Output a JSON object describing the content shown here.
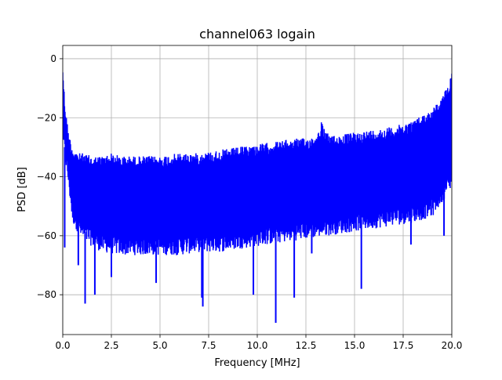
{
  "chart_data": {
    "type": "line",
    "title": "channel063 logain",
    "xlabel": "Frequency [MHz]",
    "ylabel": "PSD [dB]",
    "xlim": [
      0,
      20
    ],
    "ylim": [
      -93.5,
      4.5
    ],
    "x_ticks": [
      0,
      2.5,
      5,
      7.5,
      10,
      12.5,
      15,
      17.5,
      20
    ],
    "x_tick_labels": [
      "0.0",
      "2.5",
      "5.0",
      "7.5",
      "10.0",
      "12.5",
      "15.0",
      "17.5",
      "20.0"
    ],
    "y_ticks": [
      0,
      -20,
      -40,
      -60,
      -80
    ],
    "y_tick_labels": [
      "0",
      "−20",
      "−40",
      "−60",
      "−80"
    ],
    "grid": true,
    "series": [
      {
        "color": "#0000ff",
        "upper_envelope": {
          "x": [
            0.0,
            0.1,
            0.2,
            0.3,
            0.5,
            0.8,
            1.0,
            1.5,
            2.0,
            2.5,
            3.0,
            4.0,
            5.0,
            6.0,
            7.0,
            8.0,
            9.0,
            10.0,
            11.0,
            12.0,
            12.5,
            13.0,
            13.2,
            13.3,
            13.5,
            14.0,
            15.0,
            16.0,
            17.0,
            17.5,
            18.0,
            18.5,
            19.0,
            19.5,
            19.8,
            20.0
          ],
          "y": [
            -2,
            -14,
            -20,
            -25,
            -30,
            -32,
            -32,
            -33,
            -33,
            -32,
            -33,
            -33,
            -33,
            -32,
            -32,
            -31,
            -30,
            -29,
            -28,
            -27,
            -27,
            -26,
            -24,
            -21,
            -25,
            -26,
            -25,
            -24,
            -23,
            -22,
            -21,
            -19,
            -17,
            -13,
            -9,
            -4
          ]
        },
        "lower_envelope": {
          "x": [
            0.0,
            0.3,
            0.5,
            1.0,
            1.5,
            2.0,
            3.0,
            4.0,
            5.0,
            6.0,
            7.0,
            8.0,
            9.0,
            10.0,
            11.0,
            12.0,
            13.0,
            14.0,
            15.0,
            16.0,
            17.0,
            18.0,
            19.0,
            19.5,
            20.0
          ],
          "y": [
            -25,
            -40,
            -52,
            -58,
            -60,
            -62,
            -63,
            -63,
            -63,
            -63,
            -62,
            -62,
            -61,
            -60,
            -59,
            -58,
            -57,
            -56,
            -55,
            -54,
            -53,
            -52,
            -50,
            -45,
            -40
          ]
        },
        "dips": {
          "x": [
            0.1,
            0.8,
            1.15,
            1.65,
            2.5,
            4.8,
            7.15,
            7.2,
            9.8,
            10.95,
            11.9,
            12.8,
            15.35,
            17.9,
            19.6
          ],
          "y": [
            -64,
            -70,
            -83,
            -80,
            -74,
            -76,
            -81,
            -84,
            -80,
            -89.5,
            -81,
            -66,
            -78,
            -63,
            -60
          ]
        }
      }
    ]
  }
}
